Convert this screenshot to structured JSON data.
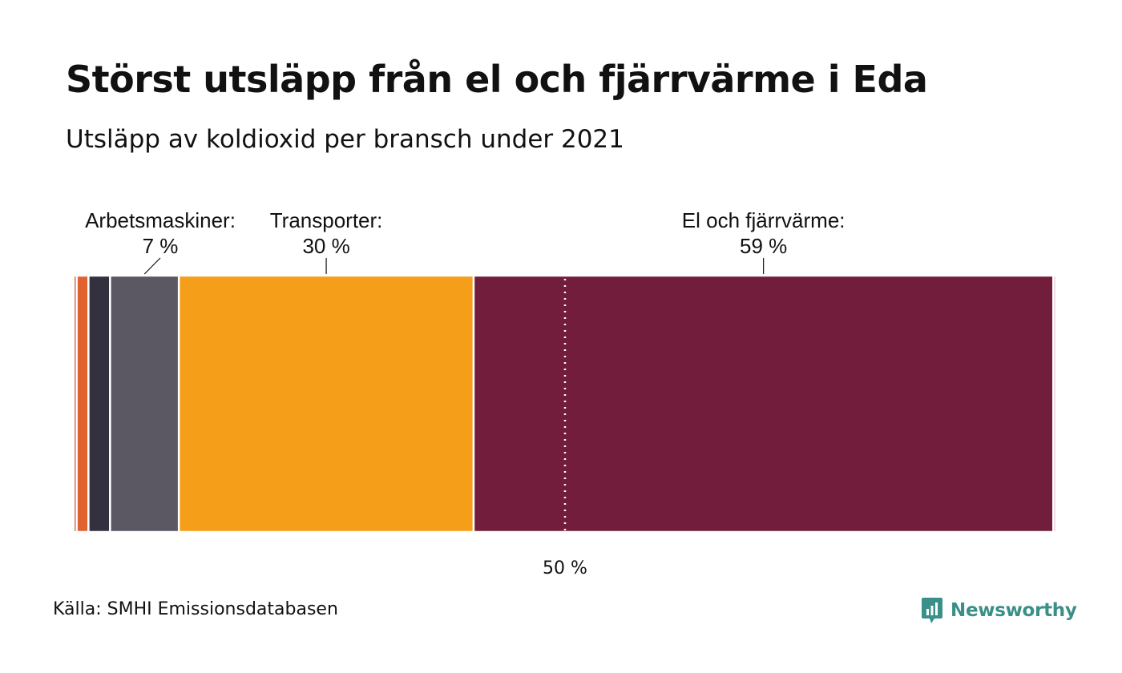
{
  "header": {
    "title": "Störst utsläpp från el och fjärrvärme i Eda",
    "subtitle": "Utsläpp av koldioxid per bransch under 2021"
  },
  "footer": {
    "source": "Källa: SMHI Emissionsdatabasen",
    "brand": "Newsworthy"
  },
  "colors": {
    "background": "#ffffff",
    "brand": "#3a8f88"
  },
  "chart_data": {
    "type": "bar",
    "orientation": "horizontal-stacked-100",
    "segments": [
      {
        "value": 0.3,
        "color": "#b5452f"
      },
      {
        "value": 1.2,
        "color": "#e0622f"
      },
      {
        "value": 2.2,
        "color": "#33313f"
      },
      {
        "value": 7,
        "color": "#5b5763",
        "label": "Arbetsmaskiner:",
        "value_label": "7 %"
      },
      {
        "value": 30,
        "color": "#f59e1a",
        "label": "Transporter:",
        "value_label": "30 %"
      },
      {
        "value": 59,
        "color": "#731d3d",
        "label": "El och fjärrvärme:",
        "value_label": "59 %"
      },
      {
        "value": 0.3,
        "color": "#e6c8d2"
      }
    ],
    "reference_line": {
      "value": 50,
      "label": "50 %"
    },
    "xlim": [
      0,
      100
    ]
  }
}
